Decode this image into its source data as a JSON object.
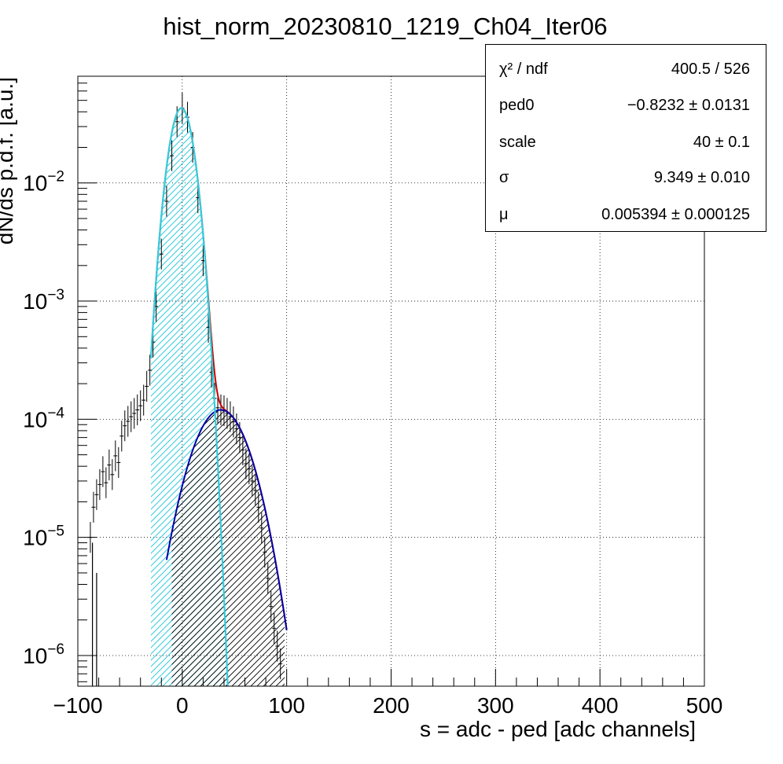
{
  "chart_data": {
    "type": "histogram",
    "title": "hist_norm_20230810_1219_Ch04_Iter06",
    "xlabel": "s = adc - ped [adc channels]",
    "ylabel": "dN/ds p.d.f. [a.u.]",
    "xlim": [
      -100,
      500
    ],
    "ylim": [
      5.5e-07,
      0.08
    ],
    "yscale": "log",
    "grid": true,
    "x_ticks": [
      -100,
      0,
      100,
      200,
      300,
      400,
      500
    ],
    "x_tick_labels": [
      "−100",
      "0",
      "100",
      "200",
      "300",
      "400",
      "500"
    ],
    "y_ticks": [
      1e-06,
      1e-05,
      0.0001,
      0.001,
      0.01
    ],
    "y_tick_labels": [
      {
        "base": "10",
        "exp": "−6"
      },
      {
        "base": "10",
        "exp": "−5"
      },
      {
        "base": "10",
        "exp": "−4"
      },
      {
        "base": "10",
        "exp": "−3"
      },
      {
        "base": "10",
        "exp": "−2"
      }
    ],
    "pedestal_gaussian": {
      "color": "#33ccdd",
      "center": -0.8232,
      "peak": 0.043,
      "sigma": 9.349,
      "fill": "hatched",
      "fill_range": [
        -30,
        45
      ]
    },
    "signal_component": {
      "color": "#0000aa",
      "center": 37,
      "peak": 0.00012,
      "sigma": 21.5,
      "fill": "hatched",
      "fill_range": [
        -10,
        98
      ]
    },
    "total_fit": {
      "color": "#cc0000",
      "range": [
        -30,
        100
      ]
    },
    "data": {
      "color": "#000000",
      "points": [
        [
          -88,
          1e-05
        ],
        [
          -85,
          1.8e-05
        ],
        [
          -82,
          2.3e-05
        ],
        [
          -79,
          2.8e-05
        ],
        [
          -76,
          3.6e-05
        ],
        [
          -73,
          2.9e-05
        ],
        [
          -70,
          4.1e-05
        ],
        [
          -67,
          3.4e-05
        ],
        [
          -64,
          4.9e-05
        ],
        [
          -61,
          4.3e-05
        ],
        [
          -58,
          7.2e-05
        ],
        [
          -55,
          8.8e-05
        ],
        [
          -52,
          9.6e-05
        ],
        [
          -49,
          0.000105
        ],
        [
          -46,
          0.000112
        ],
        [
          -43,
          0.00012
        ],
        [
          -40,
          0.00013
        ],
        [
          -37,
          0.000145
        ],
        [
          -34,
          0.00019
        ],
        [
          -31,
          0.00026
        ],
        [
          -28,
          0.00045
        ],
        [
          -25,
          0.0009
        ],
        [
          -20,
          0.0025
        ],
        [
          -15,
          0.007
        ],
        [
          -10,
          0.017
        ],
        [
          -5,
          0.033
        ],
        [
          0,
          0.043
        ],
        [
          5,
          0.036
        ],
        [
          10,
          0.02
        ],
        [
          15,
          0.0075
        ],
        [
          20,
          0.0022
        ],
        [
          25,
          0.0006
        ],
        [
          28,
          0.00025
        ],
        [
          31,
          0.00015
        ],
        [
          34,
          0.000125
        ],
        [
          37,
          0.00012
        ],
        [
          40,
          0.000118
        ],
        [
          43,
          0.000112
        ],
        [
          46,
          0.000105
        ],
        [
          49,
          9.5e-05
        ],
        [
          52,
          8.3e-05
        ],
        [
          55,
          7e-05
        ],
        [
          58,
          5.5e-05
        ],
        [
          61,
          4.2e-05
        ],
        [
          64,
          3.8e-05
        ],
        [
          67,
          3e-05
        ],
        [
          70,
          2.5e-05
        ],
        [
          73,
          1.8e-05
        ],
        [
          76,
          1.2e-05
        ],
        [
          79,
          7.5e-06
        ],
        [
          82,
          4.5e-06
        ],
        [
          85,
          2.6e-06
        ],
        [
          88,
          1.7e-06
        ],
        [
          91,
          1.2e-06
        ],
        [
          94,
          8.5e-07
        ]
      ]
    }
  },
  "stats": {
    "rows": [
      {
        "name": "χ² / ndf",
        "value": "400.5 / 526"
      },
      {
        "name": "ped0",
        "value": "−0.8232 ± 0.0131"
      },
      {
        "name": "scale",
        "value": "40 ± 0.1"
      },
      {
        "name": "σ",
        "value": "9.349 ± 0.010"
      },
      {
        "name": "μ",
        "value": "0.005394 ± 0.000125"
      }
    ]
  }
}
